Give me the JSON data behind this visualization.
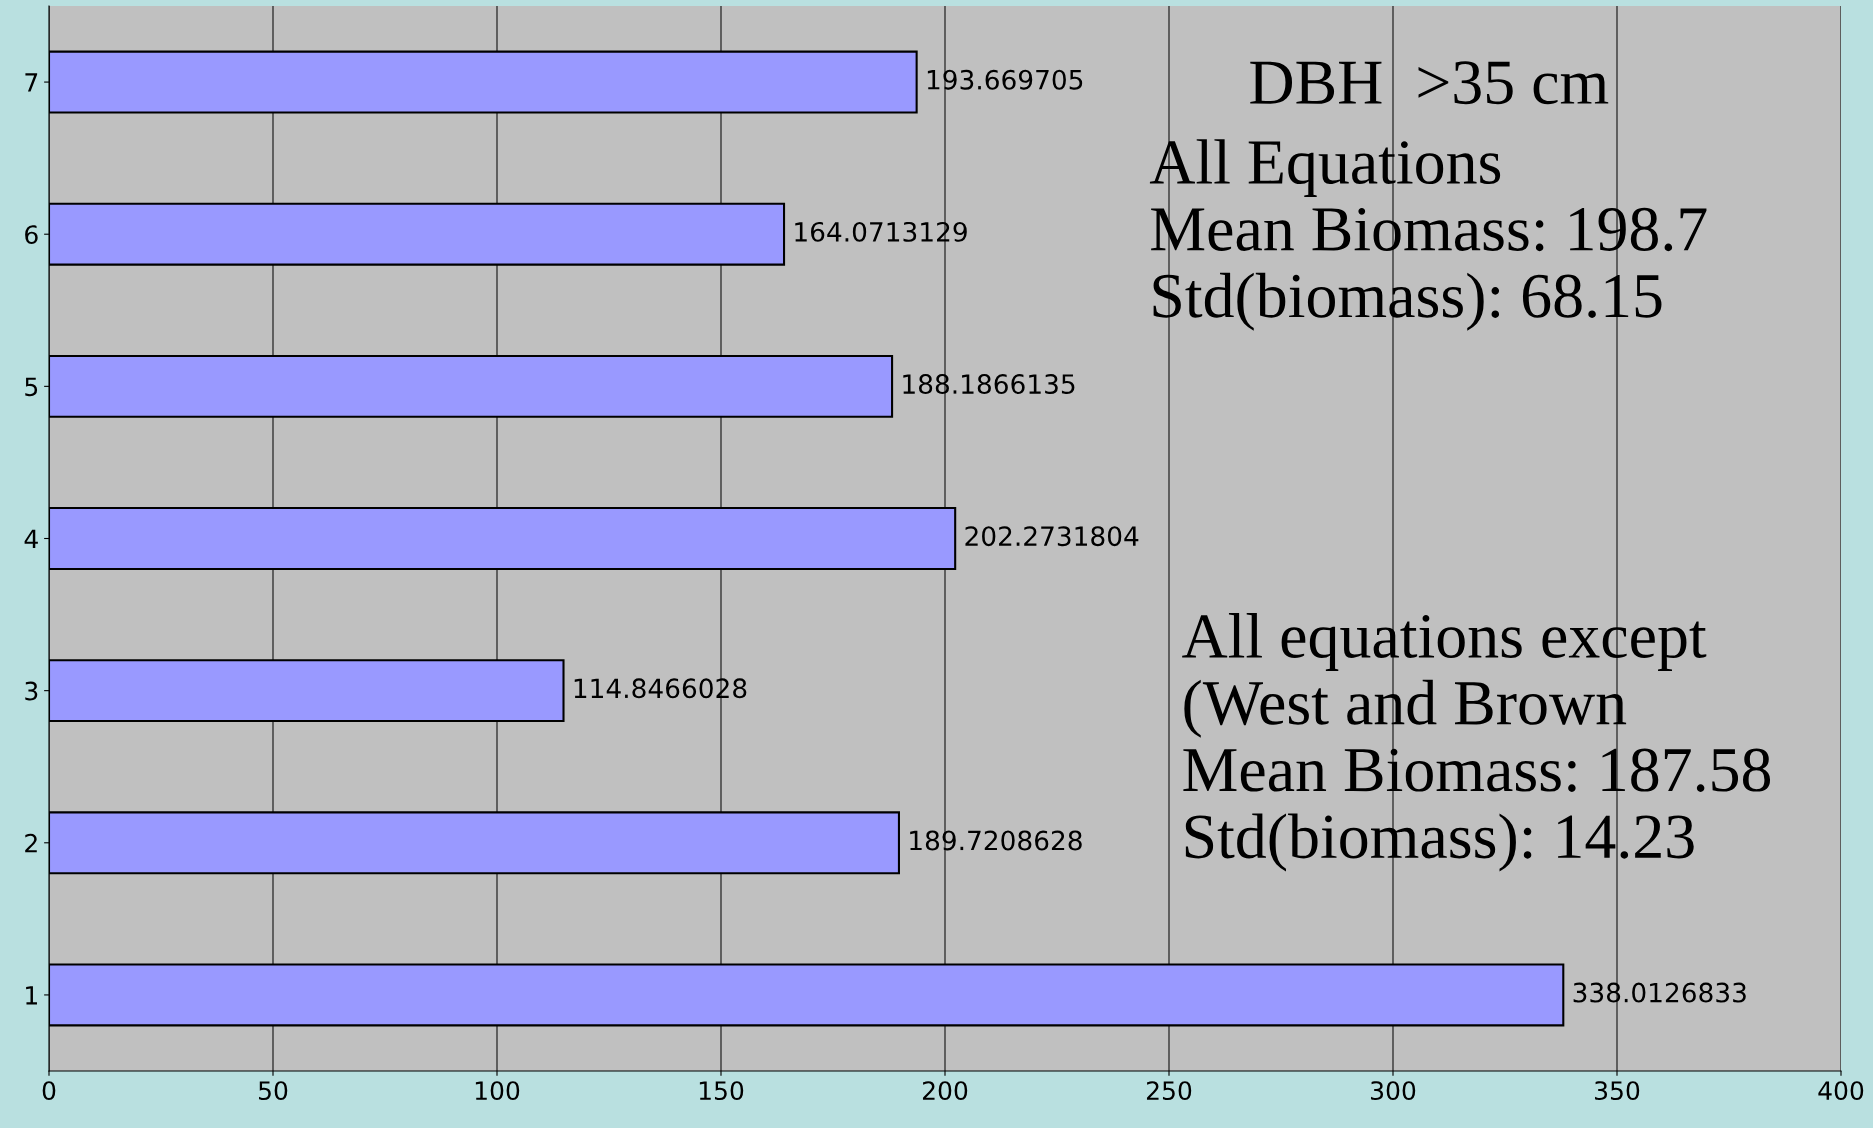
{
  "chart_data": {
    "type": "bar",
    "orientation": "horizontal",
    "categories": [
      "7",
      "6",
      "5",
      "4",
      "3",
      "2",
      "1"
    ],
    "values": [
      193.669705,
      164.0713129,
      188.1866135,
      202.2731804,
      114.8466028,
      189.7208628,
      338.0126833
    ],
    "color": "#9999ff",
    "data_labels": true,
    "xlim": [
      0,
      400
    ],
    "xticks": [
      0,
      50,
      100,
      150,
      200,
      250,
      300,
      350,
      400
    ],
    "grid": "x",
    "annotations": [
      "DBH  >35 cm",
      "All Equations\nMean Biomass: 198.7\nStd(biomass): 68.15",
      "All equations except\n(West and Brown\nMean Biomass: 187.58\nStd(biomass): 14.23"
    ]
  }
}
